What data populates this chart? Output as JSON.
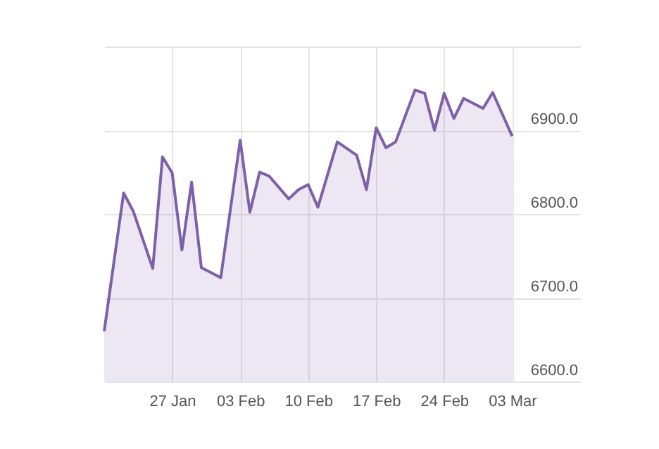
{
  "chart_data": {
    "type": "area",
    "x": [
      "--01-20",
      "--01-22",
      "--01-23",
      "--01-25",
      "--01-26",
      "--01-27",
      "--01-28",
      "--01-29",
      "--01-30",
      "--02-01",
      "--02-03",
      "--02-04",
      "--02-05",
      "--02-06",
      "--02-08",
      "--02-09",
      "--02-10",
      "--02-11",
      "--02-13",
      "--02-15",
      "--02-16",
      "--02-17",
      "--02-18",
      "--02-19",
      "--02-21",
      "--02-22",
      "--02-23",
      "--02-24",
      "--02-25",
      "--02-26",
      "--02-28",
      "--03-01",
      "--03-03"
    ],
    "series": [
      {
        "color": "#7e60a8",
        "values": [
          6660,
          6825,
          6803,
          6735,
          6868,
          6849,
          6757,
          6838,
          6736,
          6724,
          6888,
          6802,
          6850,
          6845,
          6818,
          6829,
          6835,
          6808,
          6886,
          6870,
          6829,
          6903,
          6879,
          6886,
          6948,
          6944,
          6900,
          6944,
          6914,
          6938,
          6926,
          6945,
          6893
        ]
      }
    ],
    "xlim": [
      "--01-20",
      "--03-10"
    ],
    "xticks": [
      {
        "value": "--01-27",
        "label": "27 Jan"
      },
      {
        "value": "--02-03",
        "label": "03 Feb"
      },
      {
        "value": "--02-10",
        "label": "10 Feb"
      },
      {
        "value": "--02-17",
        "label": "17 Feb"
      },
      {
        "value": "--02-24",
        "label": "24 Feb"
      },
      {
        "value": "--03-03",
        "label": "03 Mar"
      }
    ],
    "ylim": [
      6600,
      7000
    ],
    "yticks": [
      {
        "value": 6600,
        "label": "6600.0"
      },
      {
        "value": 6700,
        "label": "6700.0"
      },
      {
        "value": 6800,
        "label": "6800.0"
      },
      {
        "value": 6900,
        "label": "6900.0"
      },
      {
        "value": 7000,
        "label": null
      }
    ],
    "grid": true
  }
}
